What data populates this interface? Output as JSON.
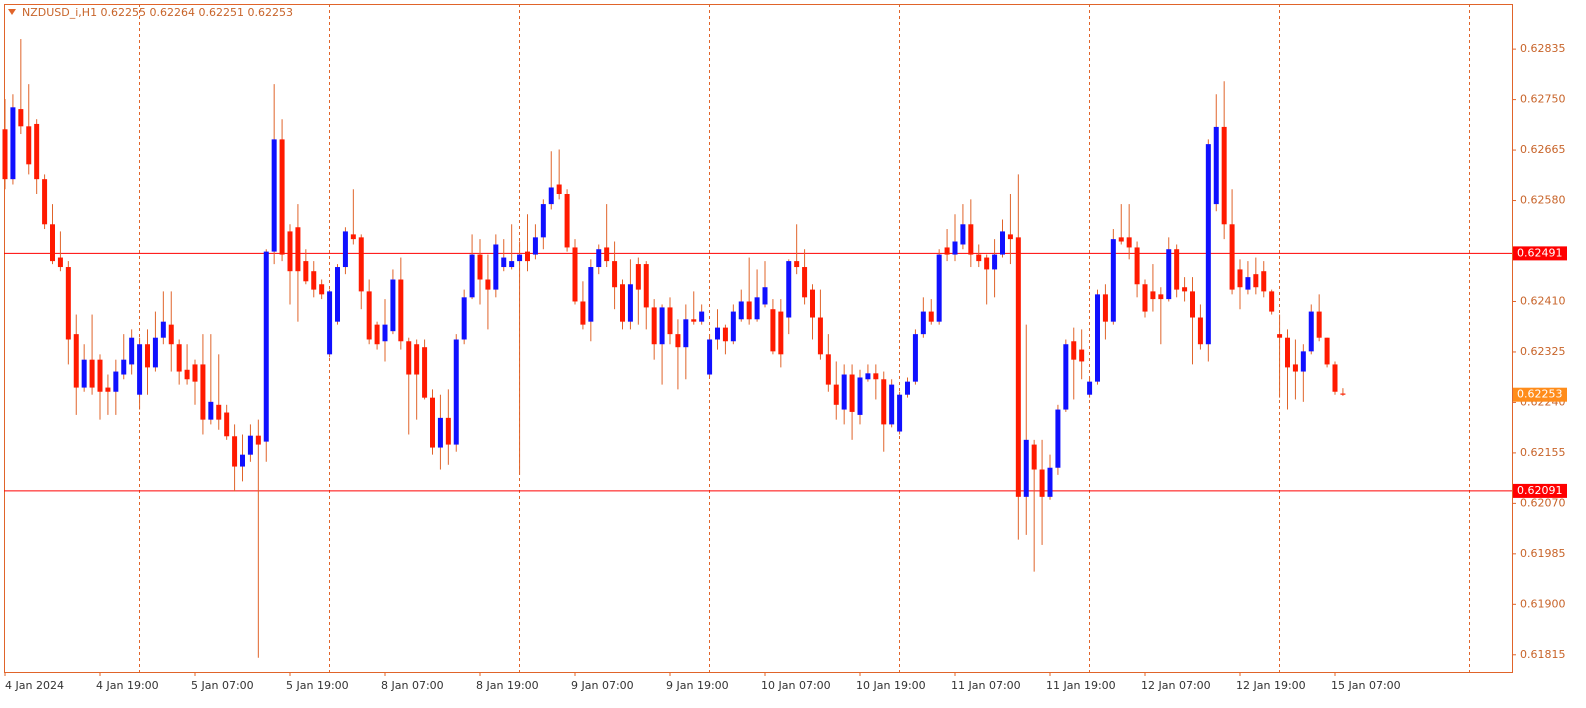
{
  "chart_data": {
    "type": "candlestick",
    "title": "NZDUSD_i,H1  0.62255 0.62264 0.62251 0.62253",
    "categories": [
      "4 Jan 2024",
      null,
      null,
      null,
      null,
      null,
      null,
      null,
      null,
      null,
      null,
      null,
      "4 Jan 19:00",
      null,
      null,
      null,
      null,
      null,
      null,
      null,
      null,
      null,
      null,
      null,
      "5 Jan 07:00",
      null,
      null,
      null,
      null,
      null,
      null,
      null,
      null,
      null,
      null,
      null,
      "5 Jan 19:00",
      null,
      null,
      null,
      null,
      null,
      null,
      null,
      null,
      null,
      null,
      null,
      "8 Jan 07:00",
      null,
      null,
      null,
      null,
      null,
      null,
      null,
      null,
      null,
      null,
      null,
      "8 Jan 19:00",
      null,
      null,
      null,
      null,
      null,
      null,
      null,
      null,
      null,
      null,
      null,
      "9 Jan 07:00",
      null,
      null,
      null,
      null,
      null,
      null,
      null,
      null,
      null,
      null,
      null,
      "9 Jan 19:00",
      null,
      null,
      null,
      null,
      null,
      null,
      null,
      null,
      null,
      null,
      null,
      "10 Jan 07:00",
      null,
      null,
      null,
      null,
      null,
      null,
      null,
      null,
      null,
      null,
      null,
      "10 Jan 19:00",
      null,
      null,
      null,
      null,
      null,
      null,
      null,
      null,
      null,
      null,
      null,
      "11 Jan 07:00",
      null,
      null,
      null,
      null,
      null,
      null,
      null,
      null,
      null,
      null,
      null,
      "11 Jan 19:00",
      null,
      null,
      null,
      null,
      null,
      null,
      null,
      null,
      null,
      null,
      null,
      "12 Jan 07:00",
      null,
      null,
      null,
      null,
      null,
      null,
      null,
      null,
      null,
      null,
      null,
      "12 Jan 19:00",
      null,
      null,
      null,
      null,
      null,
      null,
      null,
      null,
      null,
      null,
      null,
      "15 Jan 07:00",
      null
    ],
    "open": [
      0.627,
      0.62616,
      0.62734,
      0.62705,
      0.62709,
      0.62616,
      0.6254,
      0.62484,
      0.62468,
      0.62355,
      0.62265,
      0.62312,
      0.62312,
      0.62265,
      0.62258,
      0.62287,
      0.62304,
      0.62253,
      0.62338,
      0.62299,
      0.62349,
      0.62371,
      0.62338,
      0.62295,
      0.62304,
      0.62304,
      0.62211,
      0.62236,
      0.62223,
      0.62183,
      0.62132,
      0.62152,
      0.62184,
      0.62174,
      0.62494,
      0.62683,
      0.62528,
      0.62535,
      0.62478,
      0.62461,
      0.62439,
      0.62321,
      0.62376,
      0.62468,
      0.62523,
      0.62518,
      0.62427,
      0.62371,
      0.62343,
      0.6236,
      0.62447,
      0.62343,
      0.62338,
      0.62333,
      0.62248,
      0.62164,
      0.62214,
      0.62169,
      0.62346,
      0.62417,
      0.62489,
      0.62447,
      0.6243,
      0.62468,
      0.62468,
      0.62478,
      0.62494,
      0.62489,
      0.62518,
      0.62574,
      0.62607,
      0.62591,
      0.62501,
      0.6241,
      0.62376,
      0.62468,
      0.62501,
      0.62478,
      0.62439,
      0.62376,
      0.62473,
      0.62473,
      0.624,
      0.62338,
      0.624,
      0.62355,
      0.62333,
      0.6238,
      0.62376,
      0.62287,
      0.62346,
      0.62366,
      0.62343,
      0.6238,
      0.6241,
      0.6238,
      0.62405,
      0.62397,
      0.62393,
      0.62383,
      0.62478,
      0.62468,
      0.6243,
      0.62383,
      0.62321,
      0.6227,
      0.62228,
      0.62287,
      0.62219,
      0.62279,
      0.62289,
      0.62279,
      0.62203,
      0.62191,
      0.62253,
      0.62275,
      0.62355,
      0.62393,
      0.62376,
      0.62501,
      0.62489,
      0.62506,
      0.6254,
      0.62489,
      0.62484,
      0.62464,
      0.62489,
      0.62523,
      0.62518,
      0.62081,
      0.62169,
      0.62127,
      0.62081,
      0.6213,
      0.62228,
      0.62343,
      0.62329,
      0.62253,
      0.62275,
      0.62422,
      0.62376,
      0.62518,
      0.62518,
      0.62501,
      0.62439,
      0.62427,
      0.62422,
      0.62414,
      0.62498,
      0.62434,
      0.62427,
      0.62383,
      0.62338,
      0.62574,
      0.62704,
      0.6254,
      0.62464,
      0.6243,
      0.62456,
      0.62461,
      0.62427,
      0.62355,
      0.62349,
      0.62304,
      0.62292,
      0.62326,
      0.62393,
      0.62349,
      0.62304,
      0.62255
    ],
    "high": [
      0.62751,
      0.62759,
      0.62852,
      0.62776,
      0.62717,
      0.62624,
      0.62574,
      0.62528,
      0.62478,
      0.62388,
      0.62338,
      0.62388,
      0.62321,
      0.62287,
      0.62312,
      0.62355,
      0.62363,
      0.62349,
      0.62363,
      0.62393,
      0.62427,
      0.62427,
      0.62346,
      0.62338,
      0.62312,
      0.62355,
      0.62355,
      0.62321,
      0.62236,
      0.62203,
      0.62186,
      0.62203,
      0.62211,
      0.62498,
      0.62776,
      0.62717,
      0.6254,
      0.62574,
      0.62498,
      0.62478,
      0.62447,
      0.6243,
      0.62473,
      0.62535,
      0.62599,
      0.62523,
      0.62447,
      0.62376,
      0.62414,
      0.62464,
      0.62484,
      0.62349,
      0.62346,
      0.62346,
      0.62262,
      0.62253,
      0.62262,
      0.62355,
      0.6243,
      0.62523,
      0.62515,
      0.62489,
      0.62523,
      0.62515,
      0.6254,
      0.62511,
      0.62557,
      0.6254,
      0.62582,
      0.62663,
      0.62666,
      0.62599,
      0.62515,
      0.62444,
      0.62481,
      0.62506,
      0.62574,
      0.62511,
      0.62447,
      0.62481,
      0.62484,
      0.62478,
      0.62414,
      0.62405,
      0.62417,
      0.6238,
      0.62405,
      0.62427,
      0.62405,
      0.62355,
      0.62397,
      0.62371,
      0.62405,
      0.6243,
      0.62484,
      0.62464,
      0.62478,
      0.62414,
      0.62414,
      0.62481,
      0.6254,
      0.62498,
      0.62439,
      0.6243,
      0.62355,
      0.62309,
      0.62304,
      0.62304,
      0.62295,
      0.62304,
      0.62304,
      0.62292,
      0.62279,
      0.62258,
      0.62282,
      0.62363,
      0.62417,
      0.62414,
      0.62498,
      0.62532,
      0.62557,
      0.62574,
      0.62582,
      0.62506,
      0.62489,
      0.62515,
      0.62548,
      0.62591,
      0.62624,
      0.62371,
      0.62177,
      0.62177,
      0.62152,
      0.62236,
      0.62346,
      0.62366,
      0.62363,
      0.62282,
      0.6243,
      0.62439,
      0.62532,
      0.62574,
      0.62574,
      0.62511,
      0.62447,
      0.62473,
      0.62434,
      0.62518,
      0.62506,
      0.62451,
      0.62451,
      0.62405,
      0.62683,
      0.62759,
      0.62781,
      0.62599,
      0.62481,
      0.62478,
      0.62484,
      0.62478,
      0.6243,
      0.62388,
      0.62363,
      0.62346,
      0.62338,
      0.62405,
      0.62422,
      0.62349,
      0.62309,
      0.62264
    ],
    "low": [
      0.62599,
      0.62607,
      0.62692,
      0.62624,
      0.62591,
      0.62532,
      0.62473,
      0.62461,
      0.62304,
      0.62219,
      0.62258,
      0.62253,
      0.62211,
      0.62219,
      0.62219,
      0.62279,
      0.62287,
      0.62228,
      0.62253,
      0.62292,
      0.62338,
      0.62292,
      0.6227,
      0.6227,
      0.62236,
      0.62186,
      0.62203,
      0.62194,
      0.62177,
      0.6209,
      0.62107,
      0.6214,
      0.6181,
      0.6214,
      0.62473,
      0.62478,
      0.62405,
      0.62376,
      0.62439,
      0.62417,
      0.62414,
      0.62316,
      0.62371,
      0.62456,
      0.62506,
      0.62397,
      0.62338,
      0.62329,
      0.62309,
      0.62355,
      0.62329,
      0.62186,
      0.62211,
      0.62245,
      0.62152,
      0.62127,
      0.62135,
      0.62157,
      0.62338,
      0.62414,
      0.62405,
      0.62363,
      0.62417,
      0.62461,
      0.62464,
      0.62118,
      0.62461,
      0.62481,
      0.62498,
      0.62565,
      0.62582,
      0.62494,
      0.62405,
      0.62363,
      0.62343,
      0.62456,
      0.62468,
      0.62397,
      0.62363,
      0.62363,
      0.62371,
      0.62363,
      0.62312,
      0.6227,
      0.62338,
      0.62262,
      0.62279,
      0.62371,
      0.62371,
      0.62282,
      0.62329,
      0.62321,
      0.62338,
      0.62376,
      0.62371,
      0.62376,
      0.624,
      0.62321,
      0.62299,
      0.62355,
      0.62456,
      0.62405,
      0.62346,
      0.62312,
      0.62258,
      0.62211,
      0.62203,
      0.62177,
      0.62203,
      0.62275,
      0.62245,
      0.62157,
      0.62198,
      0.62186,
      0.62248,
      0.6227,
      0.62349,
      0.62371,
      0.62371,
      0.62478,
      0.62478,
      0.62498,
      0.62468,
      0.62468,
      0.62405,
      0.62417,
      0.62484,
      0.62473,
      0.62009,
      0.62017,
      0.61955,
      0.62,
      0.62076,
      0.62118,
      0.62224,
      0.62245,
      0.62279,
      0.62248,
      0.6227,
      0.62346,
      0.62371,
      0.62506,
      0.62481,
      0.62417,
      0.62383,
      0.62393,
      0.62338,
      0.6241,
      0.62417,
      0.6241,
      0.62304,
      0.62329,
      0.62309,
      0.62562,
      0.62515,
      0.62422,
      0.62397,
      0.62422,
      0.62422,
      0.62417,
      0.62388,
      0.62248,
      0.62228,
      0.62245,
      0.62241,
      0.62321,
      0.62343,
      0.62299,
      0.62253,
      0.62251
    ],
    "close": [
      0.62616,
      0.62737,
      0.62705,
      0.62641,
      0.62616,
      0.6254,
      0.62478,
      0.62468,
      0.62346,
      0.62265,
      0.62312,
      0.62265,
      0.62258,
      0.62258,
      0.62292,
      0.62312,
      0.62349,
      0.62338,
      0.62299,
      0.62349,
      0.62376,
      0.62338,
      0.62292,
      0.62279,
      0.62275,
      0.62211,
      0.62241,
      0.62211,
      0.62183,
      0.62132,
      0.62152,
      0.62184,
      0.62169,
      0.62494,
      0.62683,
      0.62489,
      0.62461,
      0.62461,
      0.62444,
      0.6243,
      0.62422,
      0.62427,
      0.62468,
      0.62528,
      0.62515,
      0.62427,
      0.62346,
      0.62338,
      0.62371,
      0.62447,
      0.62343,
      0.62287,
      0.62287,
      0.62248,
      0.62164,
      0.62214,
      0.62169,
      0.62346,
      0.62417,
      0.62489,
      0.62447,
      0.6243,
      0.62506,
      0.62484,
      0.62478,
      0.62489,
      0.62478,
      0.62518,
      0.62574,
      0.62602,
      0.62591,
      0.62501,
      0.6241,
      0.62371,
      0.62468,
      0.62498,
      0.62478,
      0.62434,
      0.62376,
      0.62439,
      0.6243,
      0.624,
      0.62338,
      0.624,
      0.62355,
      0.62333,
      0.6238,
      0.62376,
      0.62393,
      0.62346,
      0.62366,
      0.62343,
      0.62393,
      0.6241,
      0.6238,
      0.62417,
      0.62434,
      0.62326,
      0.62321,
      0.62478,
      0.62468,
      0.62417,
      0.62383,
      0.62321,
      0.6227,
      0.62236,
      0.62287,
      0.62224,
      0.62282,
      0.62289,
      0.62279,
      0.62203,
      0.6227,
      0.62253,
      0.62275,
      0.62355,
      0.62393,
      0.62376,
      0.62489,
      0.62489,
      0.62511,
      0.6254,
      0.62489,
      0.62478,
      0.62464,
      0.62489,
      0.62528,
      0.62515,
      0.62081,
      0.62177,
      0.62127,
      0.62081,
      0.6213,
      0.62228,
      0.62338,
      0.62312,
      0.62309,
      0.62275,
      0.62422,
      0.62376,
      0.62515,
      0.62511,
      0.62501,
      0.62439,
      0.62393,
      0.62414,
      0.62414,
      0.62498,
      0.6243,
      0.62427,
      0.62383,
      0.62338,
      0.62675,
      0.62704,
      0.6254,
      0.6243,
      0.62434,
      0.62451,
      0.62434,
      0.62427,
      0.62393,
      0.62349,
      0.62299,
      0.62292,
      0.62326,
      0.62393,
      0.62349,
      0.62304,
      0.62258,
      0.62253
    ],
    "up_color": "#1010ff",
    "down_color": "#ff1a00",
    "wick_color": "#e0642a",
    "ylim": [
      0.61786,
      0.62911
    ],
    "yticks": [
      0.62835,
      {
        "value": 0.6275,
        "label": "0.62750"
      },
      0.62665,
      {
        "value": 0.6258,
        "label": "0.62580"
      },
      {
        "value": 0.6241,
        "label": "0.62410"
      },
      0.62325,
      {
        "value": 0.6224,
        "label": "0.62240"
      },
      0.62155,
      {
        "value": 0.6207,
        "label": "0.62070"
      },
      0.61985,
      {
        "value": 0.619,
        "label": "0.61900"
      },
      0.61815
    ],
    "levels": [
      {
        "value": 0.62491,
        "color": "#ff0000",
        "line": true
      },
      {
        "value": 0.62253,
        "color": "#ff8c1a",
        "line": false
      },
      {
        "value": 0.62091,
        "color": "#ff0000",
        "line": true
      }
    ],
    "grid": true
  }
}
